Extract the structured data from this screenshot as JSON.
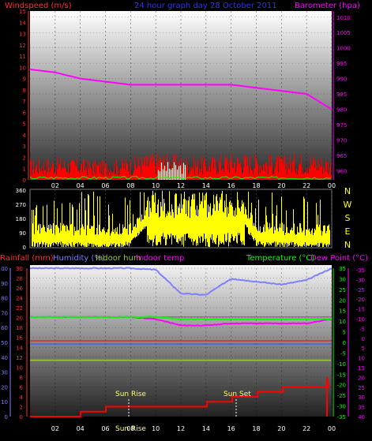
{
  "header": {
    "left_label": "Windspeed (m/s)",
    "center_label": "24 hour graph day   28 October 2011",
    "right_label": "Barometer (hpa)"
  },
  "colors": {
    "wind": "#ff0000",
    "gust": "#00ff00",
    "barometer": "#ff00ff",
    "direction": "#ffff00",
    "rain": "#ff0000",
    "humidity": "#7f7fff",
    "indoor_hum": "#9acd32",
    "indoor_temp": "#ff00ff",
    "temperature": "#00ff00",
    "dew_point": "#ff00ff",
    "axis_red": "#ff3030",
    "axis_blue": "#7f7fff",
    "axis_green": "#00ff00",
    "axis_pink": "#ff00ff",
    "axis_yellow": "#ffff00",
    "ticks": "#000000"
  },
  "time_labels": [
    "02",
    "04",
    "06",
    "08",
    "10",
    "12",
    "14",
    "16",
    "18",
    "20",
    "22",
    "00"
  ],
  "panel1": {
    "left_ticks": [
      "0",
      "1",
      "2",
      "3",
      "4",
      "5",
      "6",
      "7",
      "8",
      "9",
      "10",
      "11",
      "12",
      "13",
      "14",
      "15"
    ],
    "right_ticks": [
      "960",
      "965",
      "970",
      "975",
      "980",
      "985",
      "990",
      "995",
      "1000",
      "1005",
      "1010"
    ]
  },
  "panel2": {
    "left_ticks": [
      "0",
      "90",
      "180",
      "270",
      "360"
    ],
    "compass": [
      "N",
      "W",
      "S",
      "E",
      "N"
    ]
  },
  "panel3": {
    "legend": {
      "rainfall": "Rainfall (mm)",
      "humidity": "Humidity (%)",
      "indoor_hum": "Indoor hum",
      "indoor_temp": "Indoor temp",
      "temperature": "Temperature (°C)",
      "dew_point": "Dew Point (°C)"
    },
    "rain_ticks": [
      "0",
      "2",
      "4",
      "6",
      "8",
      "10",
      "12",
      "14",
      "16",
      "18",
      "20",
      "22",
      "24",
      "26",
      "28",
      "30"
    ],
    "hum_ticks": [
      "0",
      "10",
      "20",
      "30",
      "40",
      "50",
      "60",
      "70",
      "80",
      "90",
      "100"
    ],
    "temp_ticks": [
      "-35",
      "-30",
      "-25",
      "-20",
      "-15",
      "-10",
      "-5",
      "0",
      "5",
      "10",
      "15",
      "20",
      "25",
      "30",
      "35"
    ],
    "dew_ticks": [
      "-35",
      "-30",
      "-25",
      "-20",
      "-15",
      "-10",
      "-5",
      "0",
      "5",
      "10",
      "15",
      "20",
      "25",
      "30",
      "35",
      "40"
    ],
    "sun_rise": "Sun Rise",
    "sun_set": "Sun Set",
    "sun_time": "Sun Rise"
  },
  "chart_data": [
    {
      "type": "line",
      "title": "24 hour graph day   28 October 2011",
      "xlabel": "",
      "ylabel": "Windspeed (m/s)",
      "ylabel_right": "Barometer (hpa)",
      "x": [
        "00",
        "02",
        "04",
        "06",
        "08",
        "10",
        "12",
        "14",
        "16",
        "18",
        "20",
        "22",
        "00"
      ],
      "ylim": [
        0,
        15
      ],
      "ylim_right": [
        957,
        1012
      ],
      "series": [
        {
          "name": "Windspeed (m/s)",
          "axis": "left",
          "values": [
            1.2,
            1.3,
            1.2,
            1.1,
            1.3,
            1.6,
            1.4,
            1.3,
            1.6,
            1.5,
            1.4,
            1.6,
            1.3
          ]
        },
        {
          "name": "Barometer (hpa)",
          "axis": "right",
          "values": [
            993,
            992,
            990,
            989,
            988,
            988,
            988,
            988,
            988,
            987,
            986,
            985,
            980
          ]
        }
      ]
    },
    {
      "type": "scatter",
      "title": "",
      "ylabel": "Wind direction",
      "x": [
        "00",
        "02",
        "04",
        "06",
        "08",
        "10",
        "12",
        "14",
        "16",
        "18",
        "20",
        "22",
        "00"
      ],
      "ylim": [
        0,
        360
      ],
      "series": [
        {
          "name": "",
          "values": [
            75,
            75,
            70,
            60,
            80,
            270,
            340,
            320,
            330,
            80,
            75,
            70,
            70
          ]
        }
      ]
    },
    {
      "type": "line",
      "title": "",
      "x": [
        "00",
        "02",
        "04",
        "06",
        "08",
        "10",
        "12",
        "14",
        "16",
        "18",
        "20",
        "22",
        "00"
      ],
      "ylabels": [
        "Rainfall (mm)",
        "Humidity (%)",
        "Temperature (°C)",
        "Dew Point (°C)"
      ],
      "ylim_rain": [
        0,
        30
      ],
      "ylim_hum": [
        0,
        100
      ],
      "ylim_temp": [
        -35,
        35
      ],
      "series": [
        {
          "name": "Humidity (%)",
          "values": [
            100,
            100,
            100,
            100,
            100,
            99,
            83,
            82,
            93,
            91,
            89,
            92,
            100
          ]
        },
        {
          "name": "Temperature (°C)",
          "values": [
            12,
            12,
            12,
            12,
            12,
            12,
            11,
            11,
            11,
            11,
            11,
            11,
            11
          ]
        },
        {
          "name": "Dew Point (°C)",
          "values": [
            12,
            12,
            12,
            12,
            12,
            11,
            8,
            8,
            9,
            9,
            9,
            9,
            11
          ]
        },
        {
          "name": "Indoor hum",
          "values": [
            38,
            38,
            38,
            38,
            38,
            38,
            38,
            38,
            38,
            38,
            38,
            38,
            38
          ]
        },
        {
          "name": "Indoor temp",
          "values": [
            12,
            12,
            12,
            12,
            12,
            12,
            12,
            12,
            12,
            12,
            12,
            12,
            12
          ]
        },
        {
          "name": "Rainfall (mm)",
          "values": [
            0,
            0,
            1,
            2,
            2,
            2,
            2,
            3,
            4,
            5,
            6,
            6,
            8
          ]
        }
      ]
    }
  ]
}
